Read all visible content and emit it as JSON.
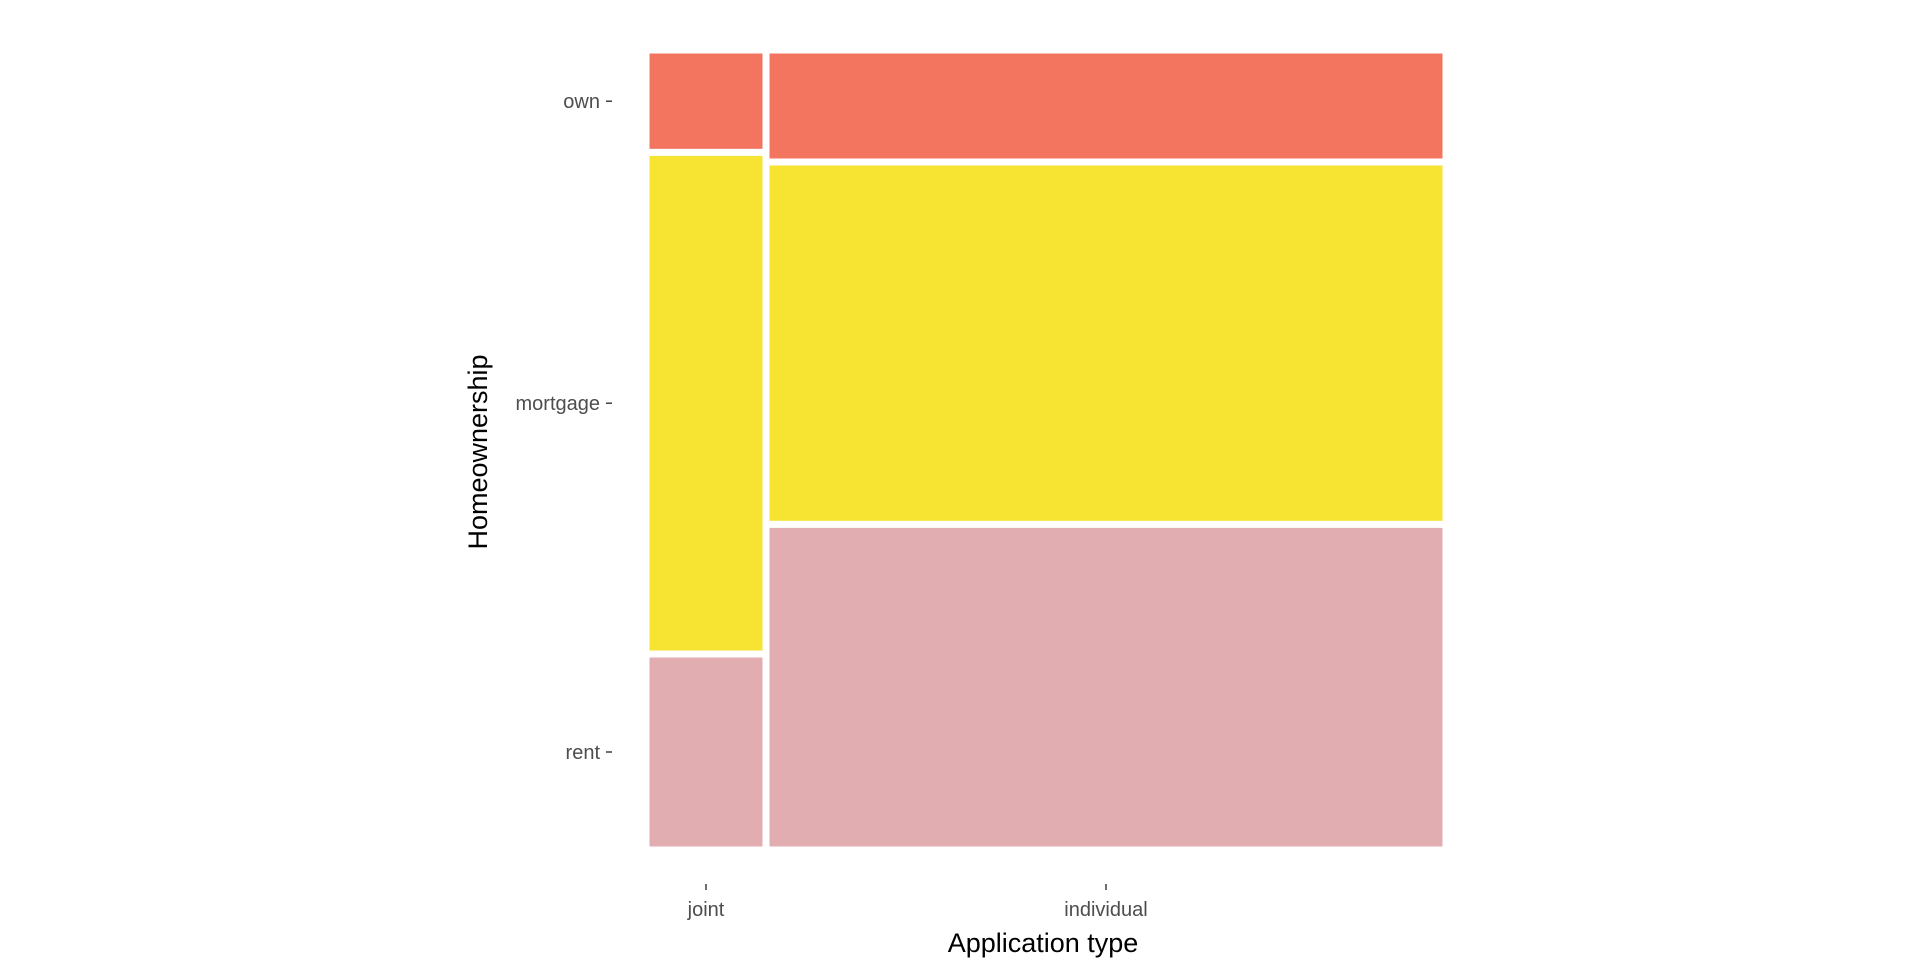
{
  "chart_data": {
    "type": "mosaic",
    "title": "",
    "xlabel": "Application type",
    "ylabel": "Homeownership",
    "x_categories": [
      "joint",
      "individual"
    ],
    "x_proportions": [
      0.15,
      0.85
    ],
    "y_categories": [
      "own",
      "mortgage",
      "rent"
    ],
    "colors": {
      "own": "#f3745f",
      "mortgage": "#f6e332",
      "rent": "#e1adb0"
    },
    "conditional_proportions": {
      "joint": {
        "own": 0.128,
        "mortgage": 0.627,
        "rent": 0.245
      },
      "individual": {
        "own": 0.14,
        "mortgage": 0.453,
        "rent": 0.407
      }
    },
    "grid": false,
    "legend": "none"
  }
}
